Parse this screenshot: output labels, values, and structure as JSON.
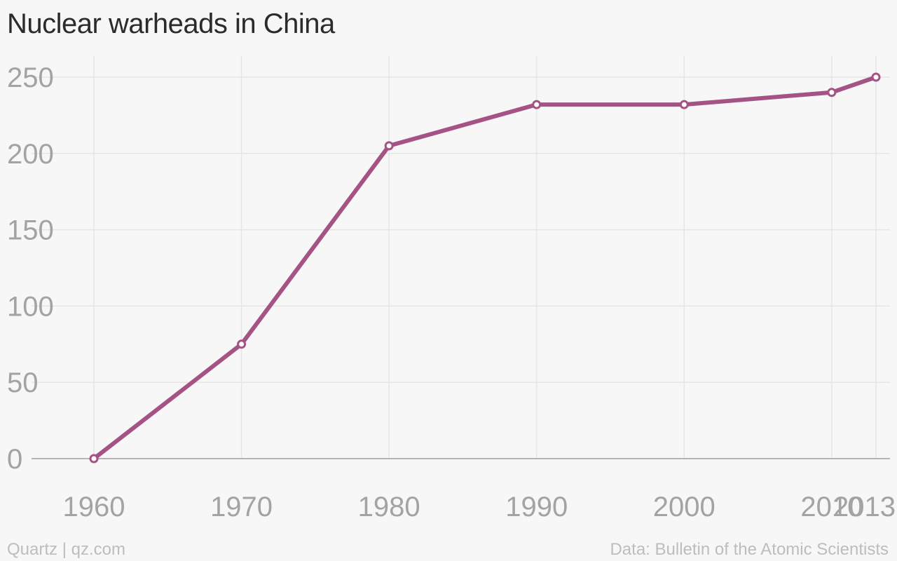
{
  "title": "Nuclear warheads in China",
  "footer": {
    "source_left": "Quartz | qz.com",
    "source_right": "Data: Bulletin of the Atomic Scientists"
  },
  "colors": {
    "line": "#a55385",
    "grid": "#e6e6e6",
    "baseline": "#9e9e9e",
    "tick_text": "#a3a3a3",
    "marker_fill": "#ffffff"
  },
  "chart_data": {
    "type": "line",
    "title": "Nuclear warheads in China",
    "xlabel": "",
    "ylabel": "",
    "x": [
      1960,
      1970,
      1980,
      1990,
      2000,
      2010,
      2013
    ],
    "series": [
      {
        "values": [
          0,
          75,
          205,
          232,
          232,
          240,
          250
        ]
      }
    ],
    "ylim": [
      0,
      250
    ],
    "yticks": [
      0,
      50,
      100,
      150,
      200,
      250
    ],
    "xtick_labels": [
      "1960",
      "1970",
      "1980",
      "1990",
      "2000",
      "2010",
      "2013"
    ],
    "grid": true,
    "markers": "hollow-circle"
  }
}
